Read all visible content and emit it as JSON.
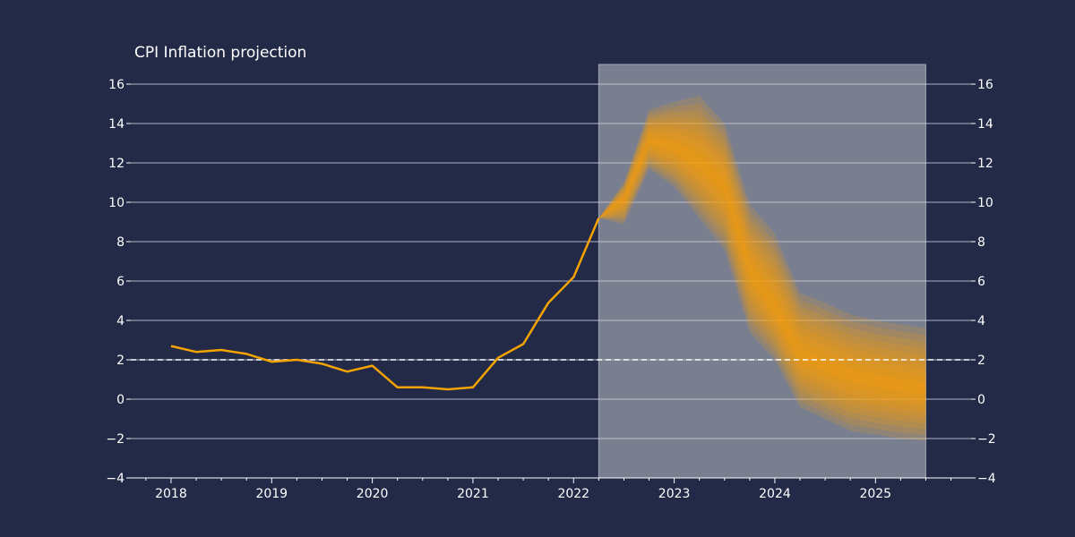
{
  "chart_data": {
    "type": "line",
    "title": "CPI Inflation projection",
    "xlabel": "",
    "ylabel": "",
    "ylim": [
      -4,
      17
    ],
    "xlim": [
      2017.6,
      2025.95
    ],
    "y_ticks": [
      -4,
      -2,
      0,
      2,
      4,
      6,
      8,
      10,
      12,
      14,
      16
    ],
    "y_tick_labels": [
      "−4",
      "−2",
      "0",
      "2",
      "4",
      "6",
      "8",
      "10",
      "12",
      "14",
      "16"
    ],
    "x_ticks": [
      2018,
      2019,
      2020,
      2021,
      2022,
      2023,
      2024,
      2025
    ],
    "x_tick_labels": [
      "2018",
      "2019",
      "2020",
      "2021",
      "2022",
      "2023",
      "2024",
      "2025"
    ],
    "grid": "horizontal",
    "target_line": 2,
    "projection_region": [
      2022.25,
      2025.5
    ],
    "colors": {
      "background": "#222a47",
      "line": "#f5a300",
      "fan": "#ffa200",
      "projection_shade": "#7a7f8f",
      "grid": "#c9ccd6"
    },
    "series": [
      {
        "x": [
          2018.0,
          2018.25,
          2018.5,
          2018.75,
          2019.0,
          2019.25,
          2019.5,
          2019.75,
          2020.0,
          2020.25,
          2020.5,
          2020.75,
          2021.0,
          2021.25,
          2021.5,
          2021.75,
          2022.0,
          2022.25
        ],
        "y": [
          2.7,
          2.4,
          2.5,
          2.3,
          1.9,
          2.0,
          1.8,
          1.4,
          1.7,
          0.6,
          0.6,
          0.5,
          0.6,
          2.1,
          2.8,
          4.9,
          6.2,
          9.2
        ]
      }
    ],
    "fan": {
      "x": [
        2022.25,
        2022.5,
        2022.75,
        2023.0,
        2023.25,
        2023.5,
        2023.75,
        2024.0,
        2024.25,
        2024.5,
        2024.75,
        2025.0,
        2025.25,
        2025.5
      ],
      "upper": [
        9.2,
        11.0,
        14.7,
        15.1,
        15.4,
        14.0,
        9.9,
        8.4,
        5.4,
        4.9,
        4.3,
        4.0,
        3.8,
        3.6
      ],
      "lower": [
        9.2,
        8.9,
        11.7,
        10.8,
        9.2,
        7.6,
        3.4,
        2.0,
        -0.4,
        -1.0,
        -1.6,
        -1.8,
        -2.0,
        -2.1
      ],
      "central": [
        9.2,
        10.2,
        13.1,
        12.8,
        12.0,
        10.8,
        6.6,
        4.6,
        2.3,
        1.7,
        1.2,
        0.9,
        0.7,
        0.5
      ]
    }
  }
}
